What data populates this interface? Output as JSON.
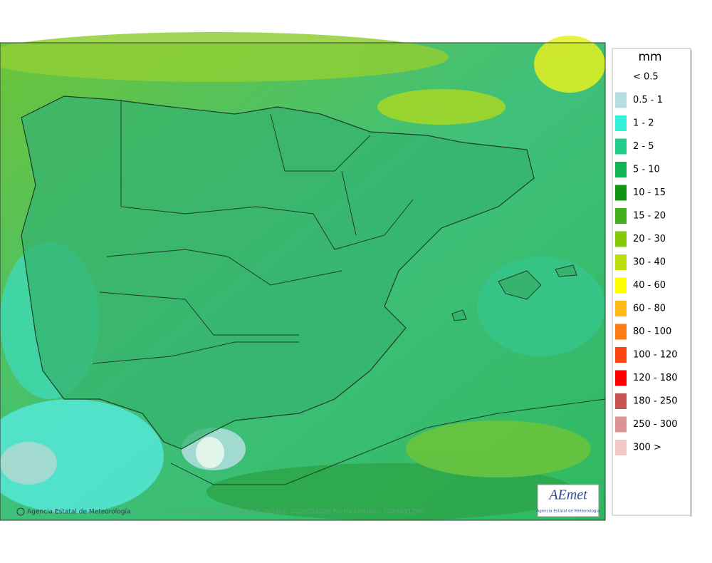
{
  "legend": {
    "title": "mm",
    "entries": [
      {
        "label": "< 0.5",
        "color": "#ffffff"
      },
      {
        "label": "0.5 - 1",
        "color": "#b3dfe0"
      },
      {
        "label": "1 - 2",
        "color": "#33efdc"
      },
      {
        "label": "2 - 5",
        "color": "#22cc8a"
      },
      {
        "label": "5 - 10",
        "color": "#11b352"
      },
      {
        "label": "10 - 15",
        "color": "#119411"
      },
      {
        "label": "15 - 20",
        "color": "#44ad1c"
      },
      {
        "label": "20 - 30",
        "color": "#86c80c"
      },
      {
        "label": "30 - 40",
        "color": "#bbe00e"
      },
      {
        "label": "40 - 60",
        "color": "#ffff00"
      },
      {
        "label": "60 - 80",
        "color": "#ffb914"
      },
      {
        "label": "80 - 100",
        "color": "#ff7a12"
      },
      {
        "label": "100 - 120",
        "color": "#ff4514"
      },
      {
        "label": "120 - 180",
        "color": "#ff0000"
      },
      {
        "label": "180 - 250",
        "color": "#c85353"
      },
      {
        "label": "250 - 300",
        "color": "#dc9393"
      },
      {
        "label": "300 >",
        "color": "#f0c8c8"
      }
    ]
  },
  "footer": {
    "copyright": "Agencia Estatal de Meteorología",
    "caption": "Precipitación en 24h máxima. Validez: 2020031200 Fecha emisión: 2020031200"
  },
  "logo": {
    "name": "AEmet",
    "subtitle": "Agencia Estatal de Meteorología"
  }
}
